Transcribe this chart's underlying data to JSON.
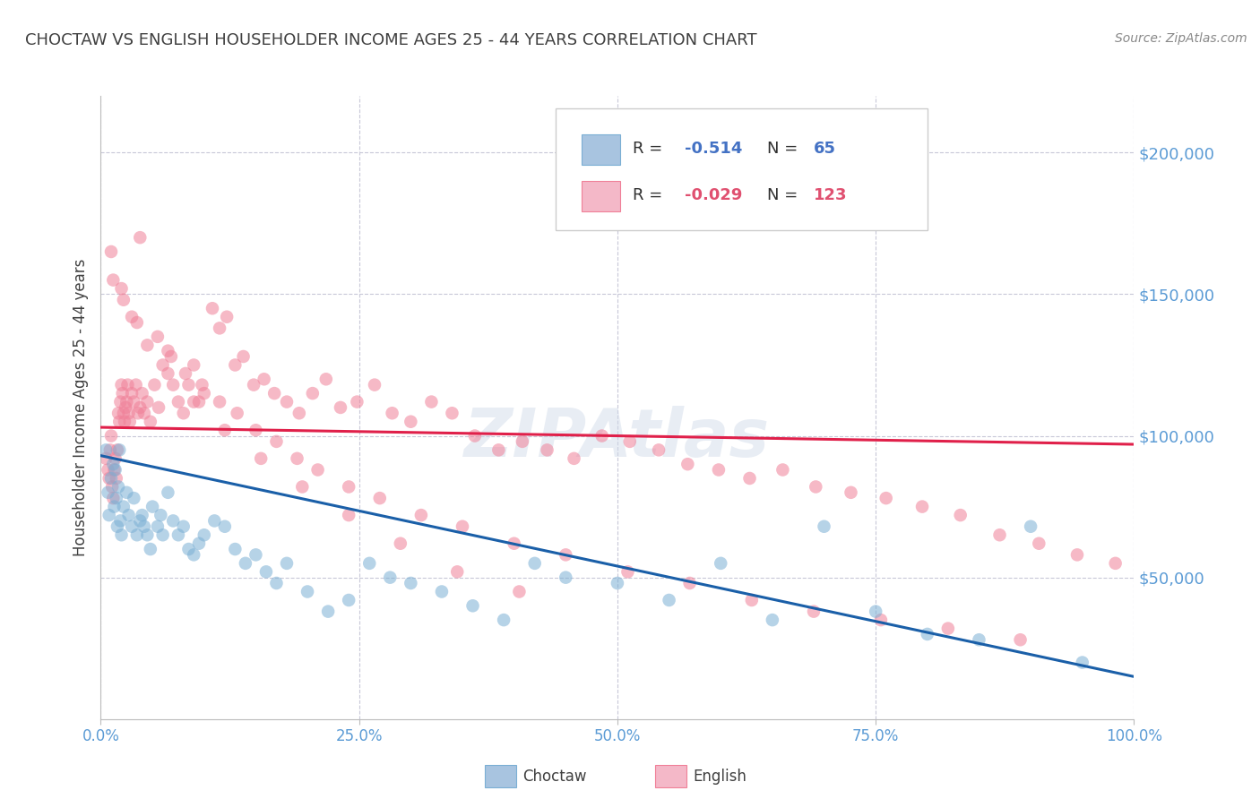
{
  "title": "CHOCTAW VS ENGLISH HOUSEHOLDER INCOME AGES 25 - 44 YEARS CORRELATION CHART",
  "source": "Source: ZipAtlas.com",
  "ylabel": "Householder Income Ages 25 - 44 years",
  "choctaw_color": "#7bafd4",
  "english_color": "#f08098",
  "choctaw_legend_color": "#a8c4e0",
  "english_legend_color": "#f4b8c8",
  "choctaw_line_color": "#1a5fa8",
  "english_line_color": "#e0204a",
  "background_color": "#ffffff",
  "grid_color": "#c8c8d8",
  "title_color": "#404040",
  "yaxis_tick_color": "#5b9bd5",
  "xaxis_tick_color": "#5b9bd5",
  "y_tick_labels": [
    "$200,000",
    "$150,000",
    "$100,000",
    "$50,000"
  ],
  "y_tick_values": [
    200000,
    150000,
    100000,
    50000
  ],
  "ylim": [
    0,
    220000
  ],
  "xlim": [
    0,
    1.0
  ],
  "watermark": "ZIPAtlas",
  "choctaw_R": "-0.514",
  "choctaw_N": "65",
  "english_R": "-0.029",
  "english_N": "123",
  "choctaw_scatter_x": [
    0.005,
    0.007,
    0.008,
    0.01,
    0.012,
    0.013,
    0.014,
    0.015,
    0.016,
    0.017,
    0.018,
    0.019,
    0.02,
    0.022,
    0.025,
    0.027,
    0.03,
    0.032,
    0.035,
    0.038,
    0.04,
    0.042,
    0.045,
    0.048,
    0.05,
    0.055,
    0.058,
    0.06,
    0.065,
    0.07,
    0.075,
    0.08,
    0.085,
    0.09,
    0.095,
    0.1,
    0.11,
    0.12,
    0.13,
    0.14,
    0.15,
    0.16,
    0.17,
    0.18,
    0.2,
    0.22,
    0.24,
    0.26,
    0.28,
    0.3,
    0.33,
    0.36,
    0.39,
    0.42,
    0.45,
    0.5,
    0.55,
    0.6,
    0.65,
    0.7,
    0.75,
    0.8,
    0.85,
    0.9,
    0.95
  ],
  "choctaw_scatter_y": [
    95000,
    80000,
    72000,
    85000,
    90000,
    75000,
    88000,
    78000,
    68000,
    82000,
    95000,
    70000,
    65000,
    75000,
    80000,
    72000,
    68000,
    78000,
    65000,
    70000,
    72000,
    68000,
    65000,
    60000,
    75000,
    68000,
    72000,
    65000,
    80000,
    70000,
    65000,
    68000,
    60000,
    58000,
    62000,
    65000,
    70000,
    68000,
    60000,
    55000,
    58000,
    52000,
    48000,
    55000,
    45000,
    38000,
    42000,
    55000,
    50000,
    48000,
    45000,
    40000,
    35000,
    55000,
    50000,
    48000,
    42000,
    55000,
    35000,
    68000,
    38000,
    30000,
    28000,
    68000,
    20000
  ],
  "english_scatter_x": [
    0.005,
    0.007,
    0.008,
    0.009,
    0.01,
    0.011,
    0.012,
    0.013,
    0.014,
    0.015,
    0.016,
    0.017,
    0.018,
    0.019,
    0.02,
    0.021,
    0.022,
    0.023,
    0.024,
    0.025,
    0.026,
    0.027,
    0.028,
    0.03,
    0.032,
    0.034,
    0.036,
    0.038,
    0.04,
    0.042,
    0.045,
    0.048,
    0.052,
    0.056,
    0.06,
    0.065,
    0.07,
    0.075,
    0.08,
    0.085,
    0.09,
    0.095,
    0.1,
    0.108,
    0.115,
    0.122,
    0.13,
    0.138,
    0.148,
    0.158,
    0.168,
    0.18,
    0.192,
    0.205,
    0.218,
    0.232,
    0.248,
    0.265,
    0.282,
    0.3,
    0.32,
    0.34,
    0.362,
    0.385,
    0.408,
    0.432,
    0.458,
    0.485,
    0.512,
    0.54,
    0.568,
    0.598,
    0.628,
    0.66,
    0.692,
    0.726,
    0.76,
    0.795,
    0.832,
    0.87,
    0.908,
    0.945,
    0.982,
    0.038,
    0.012,
    0.022,
    0.035,
    0.055,
    0.068,
    0.082,
    0.098,
    0.115,
    0.132,
    0.15,
    0.17,
    0.19,
    0.21,
    0.24,
    0.27,
    0.31,
    0.35,
    0.4,
    0.45,
    0.51,
    0.57,
    0.63,
    0.69,
    0.755,
    0.82,
    0.89,
    0.01,
    0.02,
    0.03,
    0.045,
    0.065,
    0.09,
    0.12,
    0.155,
    0.195,
    0.24,
    0.29,
    0.345,
    0.405
  ],
  "english_scatter_y": [
    92000,
    88000,
    85000,
    95000,
    100000,
    82000,
    78000,
    88000,
    92000,
    85000,
    95000,
    108000,
    105000,
    112000,
    118000,
    115000,
    108000,
    105000,
    110000,
    112000,
    118000,
    108000,
    105000,
    115000,
    112000,
    118000,
    108000,
    110000,
    115000,
    108000,
    112000,
    105000,
    118000,
    110000,
    125000,
    130000,
    118000,
    112000,
    108000,
    118000,
    125000,
    112000,
    115000,
    145000,
    138000,
    142000,
    125000,
    128000,
    118000,
    120000,
    115000,
    112000,
    108000,
    115000,
    120000,
    110000,
    112000,
    118000,
    108000,
    105000,
    112000,
    108000,
    100000,
    95000,
    98000,
    95000,
    92000,
    100000,
    98000,
    95000,
    90000,
    88000,
    85000,
    88000,
    82000,
    80000,
    78000,
    75000,
    72000,
    65000,
    62000,
    58000,
    55000,
    170000,
    155000,
    148000,
    140000,
    135000,
    128000,
    122000,
    118000,
    112000,
    108000,
    102000,
    98000,
    92000,
    88000,
    82000,
    78000,
    72000,
    68000,
    62000,
    58000,
    52000,
    48000,
    42000,
    38000,
    35000,
    32000,
    28000,
    165000,
    152000,
    142000,
    132000,
    122000,
    112000,
    102000,
    92000,
    82000,
    72000,
    62000,
    52000,
    45000
  ],
  "choctaw_trend": [
    0.0,
    1.0,
    93000,
    15000
  ],
  "english_trend": [
    0.0,
    1.0,
    103000,
    97000
  ],
  "xticks": [
    0.0,
    0.25,
    0.5,
    0.75,
    1.0
  ],
  "xticklabels": [
    "0.0%",
    "25.0%",
    "50.0%",
    "75.0%",
    "100.0%"
  ]
}
